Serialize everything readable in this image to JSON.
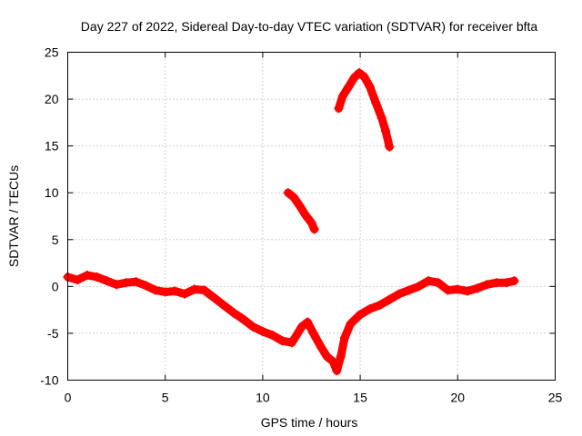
{
  "chart_data": {
    "type": "scatter",
    "title": "Day 227 of 2022, Sidereal Day-to-day VTEC variation (SDTVAR) for receiver bfta",
    "xlabel": "GPS time / hours",
    "ylabel": "SDTVAR / TECUs",
    "xlim": [
      0,
      25
    ],
    "ylim": [
      -10,
      25
    ],
    "xticks": [
      "0",
      "5",
      "10",
      "15",
      "20",
      "25"
    ],
    "yticks": [
      "-10",
      "-5",
      "0",
      "5",
      "10",
      "15",
      "20",
      "25"
    ],
    "grid": true,
    "marker": "plus",
    "color": "#ff0000",
    "series": [
      {
        "name": "main",
        "points": [
          [
            0.0,
            1.0
          ],
          [
            0.5,
            0.7
          ],
          [
            1.0,
            1.2
          ],
          [
            1.5,
            1.0
          ],
          [
            2.0,
            0.6
          ],
          [
            2.5,
            0.2
          ],
          [
            3.0,
            0.4
          ],
          [
            3.5,
            0.5
          ],
          [
            4.0,
            0.1
          ],
          [
            4.5,
            -0.4
          ],
          [
            5.0,
            -0.6
          ],
          [
            5.5,
            -0.5
          ],
          [
            6.0,
            -0.8
          ],
          [
            6.5,
            -0.3
          ],
          [
            7.0,
            -0.4
          ],
          [
            7.5,
            -1.2
          ],
          [
            8.0,
            -2.0
          ],
          [
            8.5,
            -2.8
          ],
          [
            9.0,
            -3.5
          ],
          [
            9.5,
            -4.3
          ],
          [
            10.0,
            -4.8
          ],
          [
            10.5,
            -5.2
          ],
          [
            11.0,
            -5.8
          ],
          [
            11.5,
            -6.0
          ],
          [
            12.0,
            -4.3
          ],
          [
            12.3,
            -3.8
          ],
          [
            12.6,
            -5.0
          ],
          [
            13.0,
            -6.5
          ],
          [
            13.3,
            -7.5
          ],
          [
            13.6,
            -8.0
          ],
          [
            13.8,
            -9.0
          ],
          [
            14.0,
            -7.5
          ],
          [
            14.2,
            -5.5
          ],
          [
            14.5,
            -4.0
          ],
          [
            15.0,
            -3.0
          ],
          [
            15.5,
            -2.4
          ],
          [
            16.0,
            -2.0
          ],
          [
            16.5,
            -1.4
          ],
          [
            17.0,
            -0.8
          ],
          [
            17.5,
            -0.4
          ],
          [
            18.0,
            0.0
          ],
          [
            18.5,
            0.6
          ],
          [
            19.0,
            0.4
          ],
          [
            19.5,
            -0.4
          ],
          [
            20.0,
            -0.3
          ],
          [
            20.5,
            -0.5
          ],
          [
            21.0,
            -0.2
          ],
          [
            21.5,
            0.2
          ],
          [
            22.0,
            0.4
          ],
          [
            22.5,
            0.4
          ],
          [
            22.9,
            0.6
          ]
        ]
      },
      {
        "name": "segment_1",
        "points": [
          [
            11.3,
            10.0
          ],
          [
            11.6,
            9.5
          ],
          [
            11.9,
            8.6
          ],
          [
            12.2,
            7.6
          ],
          [
            12.5,
            6.8
          ],
          [
            12.65,
            6.1
          ]
        ]
      },
      {
        "name": "segment_2",
        "points": [
          [
            13.9,
            19.0
          ],
          [
            14.1,
            20.3
          ],
          [
            14.4,
            21.3
          ],
          [
            14.7,
            22.3
          ],
          [
            14.95,
            22.8
          ],
          [
            15.2,
            22.4
          ],
          [
            15.5,
            21.3
          ],
          [
            15.8,
            19.6
          ],
          [
            16.1,
            18.0
          ],
          [
            16.3,
            16.6
          ],
          [
            16.5,
            14.9
          ]
        ]
      }
    ]
  }
}
